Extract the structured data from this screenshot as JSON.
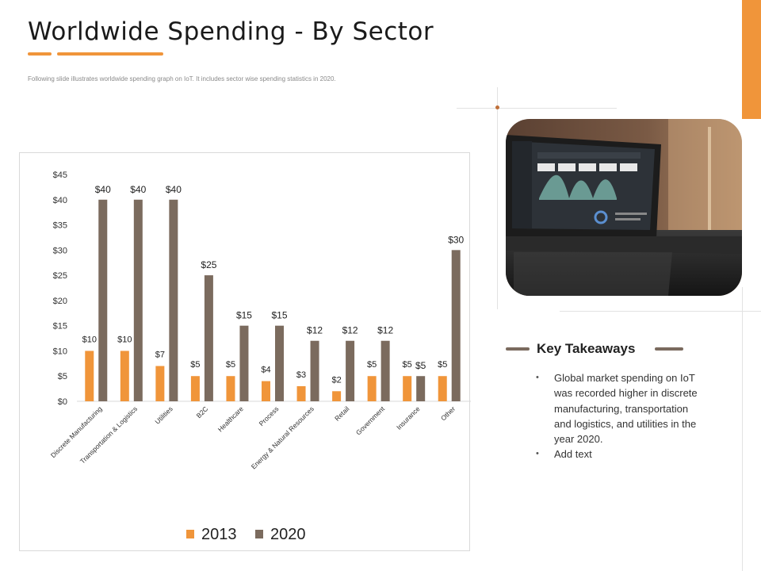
{
  "slide": {
    "title": "Worldwide Spending - By Sector",
    "subtitle": "Following slide illustrates worldwide spending graph on IoT. It includes sector wise spending statistics in 2020."
  },
  "key_takeaways": {
    "heading": "Key Takeaways",
    "items": [
      "Global market spending on IoT was recorded higher in discrete manufacturing, transportation and logistics, and utilities in the year 2020.",
      "Add text"
    ]
  },
  "colors": {
    "accent": "#f0953a",
    "series_2013": "#f0953a",
    "series_2020": "#7b6b5e"
  },
  "chart_data": {
    "type": "bar",
    "title": "",
    "xlabel": "",
    "ylabel": "",
    "ylim": [
      0,
      45
    ],
    "yticks": [
      "$0",
      "$5",
      "$10",
      "$15",
      "$20",
      "$25",
      "$30",
      "$35",
      "$40",
      "$45"
    ],
    "categories": [
      "Discrete Manufacturing",
      "Transportation & Logistics",
      "Utilities",
      "B2C",
      "Healthcare",
      "Process",
      "Energy & Natural Resources",
      "Retail",
      "Government",
      "Insurance",
      "Other"
    ],
    "series": [
      {
        "name": "2013",
        "values": [
          10,
          10,
          7,
          5,
          5,
          4,
          3,
          2,
          5,
          5,
          5
        ],
        "labels": [
          "$10",
          "$10",
          "$7",
          "$5",
          "$5",
          "$4",
          "$3",
          "$2",
          "$5",
          "$5",
          "$5"
        ]
      },
      {
        "name": "2020",
        "values": [
          40,
          40,
          40,
          25,
          15,
          15,
          12,
          12,
          12,
          5,
          30
        ],
        "labels": [
          "$40",
          "$40",
          "$40",
          "$25",
          "$15",
          "$15",
          "$12",
          "$12",
          "$12",
          "$5",
          "$30"
        ]
      }
    ],
    "legend": "bottom-center",
    "grid": false
  }
}
